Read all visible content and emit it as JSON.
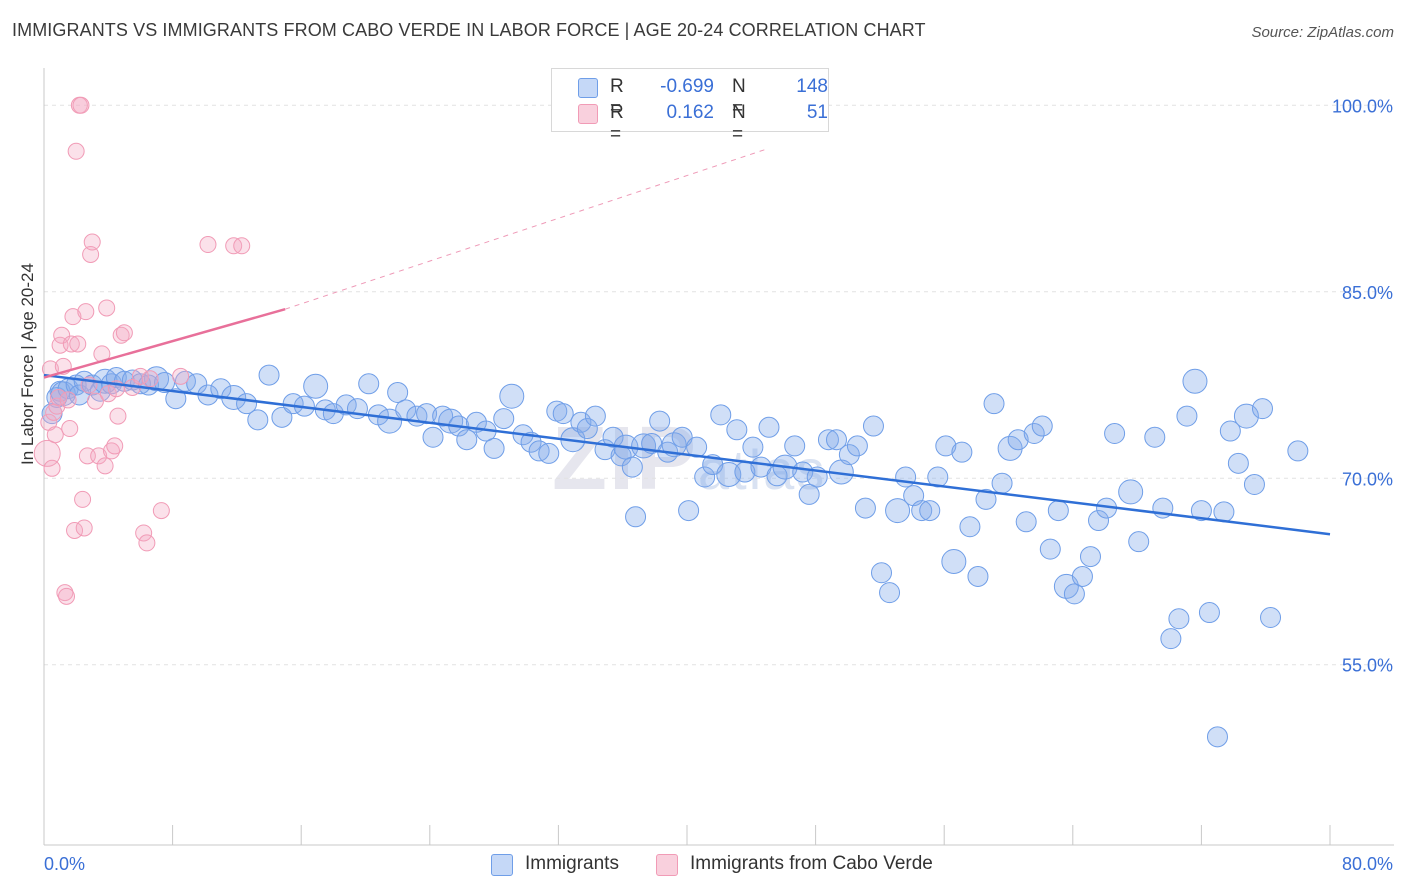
{
  "header": {
    "title": "IMMIGRANTS VS IMMIGRANTS FROM CABO VERDE IN LABOR FORCE | AGE 20-24 CORRELATION CHART",
    "source": "Source: ZipAtlas.com"
  },
  "watermark": {
    "zip": "ZIP",
    "atlas": "atlas"
  },
  "legend": {
    "rows": [
      {
        "r_label": "R =",
        "r_value": "-0.699",
        "n_label": "N =",
        "n_value": "148",
        "color": "#6f9ee8"
      },
      {
        "r_label": "R =",
        "r_value": "0.162",
        "n_label": "N =",
        "n_value": "51",
        "color": "#f19bb6"
      }
    ]
  },
  "bottom_legend": {
    "items": [
      {
        "label": "Immigrants",
        "color": "#6f9ee8"
      },
      {
        "label": "Immigrants from Cabo Verde",
        "color": "#f19bb6"
      }
    ]
  },
  "chart_data": {
    "type": "scatter",
    "title": "IMMIGRANTS VS IMMIGRANTS FROM CABO VERDE IN LABOR FORCE | AGE 20-24 CORRELATION CHART",
    "ylabel": "In Labor Force | Age 20-24",
    "xlabel": "",
    "x_tick_labels": [
      "0.0%",
      "80.0%"
    ],
    "y_tick_labels": [
      "100.0%",
      "85.0%",
      "70.0%",
      "55.0%"
    ],
    "y_ticks": [
      100,
      85,
      70,
      55
    ],
    "xlim": [
      0,
      80
    ],
    "ylim": [
      40.5,
      103
    ],
    "grid": true,
    "legend_position": "top-center",
    "colors": {
      "blue": "#6f9ee8",
      "blue_line": "#2f6fd6",
      "pink": "#f19bb6",
      "pink_line": "#e8709a",
      "axis_text": "#3a6fd6"
    },
    "series": [
      {
        "name": "Immigrants",
        "color": "#6f9ee8",
        "trend": {
          "x": [
            0,
            80
          ],
          "y": [
            78.3,
            65.5
          ]
        },
        "points": [
          [
            0.5,
            75.2
          ],
          [
            0.8,
            76.5
          ],
          [
            1.0,
            77.0
          ],
          [
            1.2,
            76.8
          ],
          [
            1.5,
            77.2
          ],
          [
            2.0,
            77.5
          ],
          [
            2.2,
            76.7
          ],
          [
            2.5,
            77.8
          ],
          [
            3.0,
            77.5
          ],
          [
            3.5,
            77.0
          ],
          [
            3.8,
            77.8
          ],
          [
            4.2,
            77.6
          ],
          [
            4.5,
            78.1
          ],
          [
            5.0,
            77.8
          ],
          [
            5.5,
            77.9
          ],
          [
            6.0,
            77.6
          ],
          [
            6.5,
            77.5
          ],
          [
            7.0,
            78.0
          ],
          [
            7.5,
            77.7
          ],
          [
            8.2,
            76.4
          ],
          [
            8.8,
            77.8
          ],
          [
            9.5,
            77.6
          ],
          [
            10.2,
            76.7
          ],
          [
            11.0,
            77.2
          ],
          [
            11.8,
            76.5
          ],
          [
            12.6,
            76.0
          ],
          [
            13.3,
            74.7
          ],
          [
            14.0,
            78.3
          ],
          [
            14.8,
            74.9
          ],
          [
            15.5,
            76.0
          ],
          [
            16.2,
            75.8
          ],
          [
            16.9,
            77.4
          ],
          [
            17.5,
            75.5
          ],
          [
            18.0,
            75.2
          ],
          [
            18.8,
            75.9
          ],
          [
            19.5,
            75.6
          ],
          [
            20.2,
            77.6
          ],
          [
            20.8,
            75.1
          ],
          [
            21.5,
            74.6
          ],
          [
            22.0,
            76.9
          ],
          [
            22.5,
            75.5
          ],
          [
            23.2,
            75.0
          ],
          [
            23.8,
            75.2
          ],
          [
            24.2,
            73.3
          ],
          [
            24.8,
            75.0
          ],
          [
            25.3,
            74.6
          ],
          [
            25.8,
            74.2
          ],
          [
            26.3,
            73.1
          ],
          [
            26.9,
            74.5
          ],
          [
            27.5,
            73.8
          ],
          [
            28.0,
            72.4
          ],
          [
            28.6,
            74.8
          ],
          [
            29.1,
            76.6
          ],
          [
            29.8,
            73.5
          ],
          [
            30.3,
            72.9
          ],
          [
            30.8,
            72.2
          ],
          [
            31.4,
            72.0
          ],
          [
            31.9,
            75.4
          ],
          [
            32.3,
            75.2
          ],
          [
            32.9,
            73.1
          ],
          [
            33.4,
            74.5
          ],
          [
            33.8,
            74.0
          ],
          [
            34.3,
            75.0
          ],
          [
            34.9,
            72.3
          ],
          [
            35.4,
            73.3
          ],
          [
            35.9,
            71.8
          ],
          [
            36.2,
            72.5
          ],
          [
            36.6,
            70.9
          ],
          [
            36.8,
            66.9
          ],
          [
            37.3,
            72.6
          ],
          [
            37.8,
            72.8
          ],
          [
            38.3,
            74.6
          ],
          [
            38.8,
            72.1
          ],
          [
            39.2,
            72.7
          ],
          [
            39.7,
            73.3
          ],
          [
            40.1,
            67.4
          ],
          [
            40.6,
            72.5
          ],
          [
            41.1,
            70.1
          ],
          [
            41.6,
            71.1
          ],
          [
            42.1,
            75.1
          ],
          [
            42.6,
            70.3
          ],
          [
            43.1,
            73.9
          ],
          [
            43.6,
            70.5
          ],
          [
            44.1,
            72.5
          ],
          [
            44.6,
            70.9
          ],
          [
            45.1,
            74.1
          ],
          [
            45.6,
            70.2
          ],
          [
            46.1,
            70.9
          ],
          [
            46.7,
            72.6
          ],
          [
            47.2,
            70.5
          ],
          [
            47.6,
            68.7
          ],
          [
            48.1,
            70.1
          ],
          [
            48.8,
            73.1
          ],
          [
            49.3,
            73.1
          ],
          [
            49.6,
            70.5
          ],
          [
            50.1,
            71.9
          ],
          [
            50.6,
            72.6
          ],
          [
            51.1,
            67.6
          ],
          [
            51.6,
            74.2
          ],
          [
            52.1,
            62.4
          ],
          [
            52.6,
            60.8
          ],
          [
            53.1,
            67.4
          ],
          [
            53.6,
            70.1
          ],
          [
            54.1,
            68.6
          ],
          [
            54.6,
            67.4
          ],
          [
            55.1,
            67.4
          ],
          [
            55.6,
            70.1
          ],
          [
            56.1,
            72.6
          ],
          [
            56.6,
            63.3
          ],
          [
            57.1,
            72.1
          ],
          [
            57.6,
            66.1
          ],
          [
            58.1,
            62.1
          ],
          [
            58.6,
            68.3
          ],
          [
            59.1,
            76.0
          ],
          [
            59.6,
            69.6
          ],
          [
            60.1,
            72.4
          ],
          [
            60.6,
            73.1
          ],
          [
            61.1,
            66.5
          ],
          [
            61.6,
            73.6
          ],
          [
            62.1,
            74.2
          ],
          [
            62.6,
            64.3
          ],
          [
            63.1,
            67.4
          ],
          [
            63.6,
            61.3
          ],
          [
            64.1,
            60.7
          ],
          [
            64.6,
            62.1
          ],
          [
            65.1,
            63.7
          ],
          [
            65.6,
            66.6
          ],
          [
            66.1,
            67.6
          ],
          [
            66.6,
            73.6
          ],
          [
            67.6,
            68.9
          ],
          [
            68.1,
            64.9
          ],
          [
            69.1,
            73.3
          ],
          [
            69.6,
            67.6
          ],
          [
            70.1,
            57.1
          ],
          [
            70.6,
            58.7
          ],
          [
            71.1,
            75.0
          ],
          [
            71.6,
            77.8
          ],
          [
            72.0,
            67.4
          ],
          [
            72.5,
            59.2
          ],
          [
            73.0,
            49.2
          ],
          [
            73.4,
            67.3
          ],
          [
            73.8,
            73.8
          ],
          [
            74.3,
            71.2
          ],
          [
            74.8,
            75.0
          ],
          [
            75.3,
            69.5
          ],
          [
            75.8,
            75.6
          ],
          [
            76.3,
            58.8
          ],
          [
            78.0,
            72.2
          ]
        ]
      },
      {
        "name": "Immigrants from Cabo Verde",
        "color": "#f19bb6",
        "trend": {
          "x": [
            0,
            15
          ],
          "y": [
            78.1,
            83.6
          ]
        },
        "trend_extension": {
          "x": [
            15,
            45
          ],
          "y": [
            83.6,
            96.5
          ]
        },
        "points": [
          [
            0.2,
            72.0
          ],
          [
            0.3,
            74.5
          ],
          [
            0.4,
            78.8
          ],
          [
            0.5,
            70.8
          ],
          [
            0.6,
            75.3
          ],
          [
            0.7,
            73.5
          ],
          [
            0.8,
            75.8
          ],
          [
            0.9,
            76.5
          ],
          [
            1.0,
            80.7
          ],
          [
            1.1,
            81.5
          ],
          [
            1.2,
            79.0
          ],
          [
            1.3,
            60.8
          ],
          [
            1.4,
            60.5
          ],
          [
            1.5,
            76.3
          ],
          [
            1.6,
            74.0
          ],
          [
            1.7,
            80.8
          ],
          [
            1.8,
            83.0
          ],
          [
            1.9,
            65.8
          ],
          [
            2.0,
            96.3
          ],
          [
            2.1,
            80.8
          ],
          [
            2.2,
            100.0
          ],
          [
            2.3,
            100.0
          ],
          [
            2.4,
            68.3
          ],
          [
            2.5,
            66.0
          ],
          [
            2.6,
            83.4
          ],
          [
            2.7,
            71.8
          ],
          [
            2.8,
            77.5
          ],
          [
            2.9,
            88.0
          ],
          [
            3.0,
            89.0
          ],
          [
            3.2,
            76.2
          ],
          [
            3.4,
            71.8
          ],
          [
            3.6,
            80.0
          ],
          [
            3.8,
            71.0
          ],
          [
            3.9,
            83.7
          ],
          [
            4.0,
            76.8
          ],
          [
            4.2,
            72.2
          ],
          [
            4.4,
            72.6
          ],
          [
            4.5,
            77.2
          ],
          [
            4.6,
            75.0
          ],
          [
            4.8,
            81.5
          ],
          [
            5.0,
            81.7
          ],
          [
            5.5,
            77.3
          ],
          [
            6.0,
            78.2
          ],
          [
            6.2,
            65.6
          ],
          [
            6.4,
            64.8
          ],
          [
            6.6,
            78.0
          ],
          [
            7.3,
            67.4
          ],
          [
            8.5,
            78.2
          ],
          [
            10.2,
            88.8
          ],
          [
            11.8,
            88.7
          ],
          [
            12.3,
            88.7
          ]
        ]
      }
    ]
  }
}
